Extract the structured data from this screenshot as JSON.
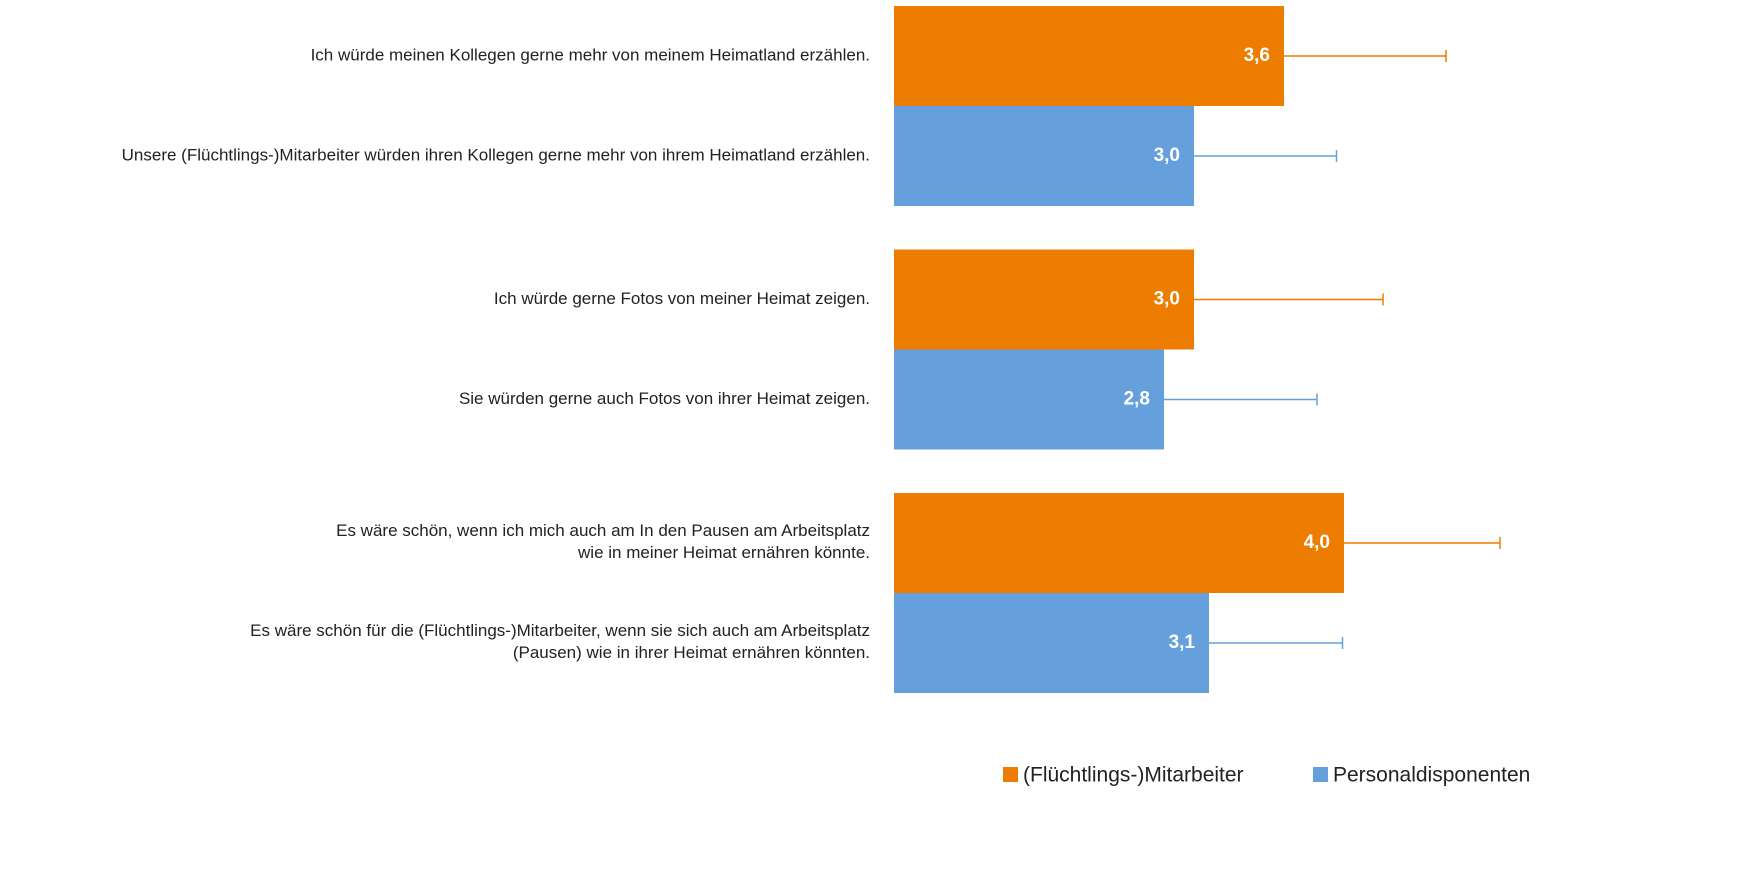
{
  "chart_data": {
    "type": "bar",
    "orientation": "horizontal",
    "categories": [
      "Ich würde meinen Kollegen gerne mehr von meinem Heimatland erzählen.",
      "Unsere (Flüchtlings-)Mitarbeiter würden ihren Kollegen gerne mehr von ihrem Heimatland erzählen.",
      "Ich würde gerne Fotos von meiner Heimat zeigen.",
      "Sie würden gerne auch Fotos von ihrer Heimat zeigen.",
      "Es wäre schön, wenn ich mich auch am In den Pausen am Arbeitsplatz\nwie in meiner Heimat ernähren könnte.",
      "Es wäre schön für die (Flüchtlings-)Mitarbeiter, wenn sie sich auch am Arbeitsplatz\n(Pausen) wie in ihrer Heimat ernähren könnten."
    ],
    "series": [
      {
        "name": "(Flüchtlings-)Mitarbeiter",
        "color": "#ed7d00",
        "values": [
          3.6,
          null,
          3.0,
          null,
          4.0,
          null
        ],
        "value_labels": [
          "3,6",
          null,
          "3,0",
          null,
          "4,0",
          null
        ],
        "errors": [
          1.08,
          null,
          1.26,
          null,
          1.04,
          null
        ]
      },
      {
        "name": "Personaldisponenten",
        "color": "#65a0dc",
        "values": [
          null,
          3.0,
          null,
          2.8,
          null,
          3.1
        ],
        "value_labels": [
          null,
          "3,0",
          null,
          "2,8",
          null,
          "3,1"
        ],
        "errors": [
          null,
          0.95,
          null,
          1.02,
          null,
          0.89
        ]
      }
    ],
    "xlim": [
      1,
      5
    ],
    "legend": "bottom-right"
  }
}
